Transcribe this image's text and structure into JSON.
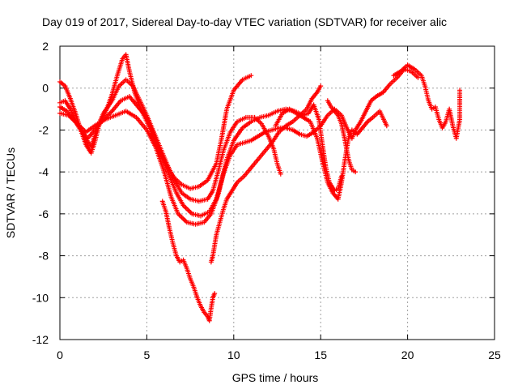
{
  "chart_data": {
    "type": "scatter",
    "title": "Day 019 of 2017, Sidereal Day-to-day VTEC variation (SDTVAR) for receiver alic",
    "xlabel": "GPS time / hours",
    "ylabel": "SDTVAR / TECUs",
    "xlim": [
      0,
      25
    ],
    "ylim": [
      -12,
      2
    ],
    "xticks": [
      0,
      5,
      10,
      15,
      20,
      25
    ],
    "yticks": [
      2,
      0,
      -2,
      -4,
      -6,
      -8,
      -10,
      -12
    ],
    "grid": true,
    "marker": "+",
    "color": "#ff0000",
    "series": [
      {
        "points": [
          [
            0,
            0.3
          ],
          [
            0.3,
            0.1
          ],
          [
            0.6,
            -0.5
          ],
          [
            0.9,
            -1.2
          ],
          [
            1.2,
            -2.0
          ],
          [
            1.5,
            -2.7
          ],
          [
            1.8,
            -3.1
          ],
          [
            2.0,
            -2.6
          ],
          [
            2.3,
            -1.6
          ],
          [
            2.7,
            -1.0
          ],
          [
            3.0,
            -0.3
          ],
          [
            3.3,
            0.6
          ],
          [
            3.6,
            1.4
          ],
          [
            3.8,
            1.6
          ],
          [
            4.0,
            0.8
          ],
          [
            4.3,
            -0.2
          ],
          [
            4.6,
            -0.9
          ],
          [
            5.0,
            -1.6
          ],
          [
            5.4,
            -2.4
          ],
          [
            5.8,
            -3.1
          ],
          [
            6.2,
            -3.8
          ],
          [
            6.6,
            -4.3
          ],
          [
            7.0,
            -4.6
          ],
          [
            7.5,
            -4.8
          ],
          [
            8.0,
            -4.7
          ],
          [
            8.5,
            -4.4
          ],
          [
            9.0,
            -3.6
          ],
          [
            9.3,
            -2.4
          ],
          [
            9.6,
            -1.0
          ],
          [
            10.0,
            -0.1
          ],
          [
            10.5,
            0.4
          ],
          [
            11.0,
            0.6
          ]
        ]
      },
      {
        "points": [
          [
            0,
            -0.7
          ],
          [
            0.3,
            -0.6
          ],
          [
            0.6,
            -1.0
          ],
          [
            1.0,
            -1.7
          ],
          [
            1.4,
            -2.3
          ],
          [
            1.8,
            -2.8
          ],
          [
            2.1,
            -2.0
          ],
          [
            2.5,
            -1.2
          ],
          [
            3.0,
            -0.6
          ],
          [
            3.4,
            0.1
          ],
          [
            3.8,
            0.4
          ],
          [
            4.2,
            0.1
          ],
          [
            4.6,
            -0.6
          ],
          [
            5.0,
            -1.3
          ],
          [
            5.4,
            -2.1
          ],
          [
            5.8,
            -2.9
          ],
          [
            6.2,
            -3.7
          ],
          [
            6.6,
            -4.4
          ],
          [
            7.0,
            -5.0
          ],
          [
            7.5,
            -5.3
          ],
          [
            8.0,
            -5.4
          ],
          [
            8.5,
            -5.3
          ],
          [
            8.8,
            -4.9
          ],
          [
            9.1,
            -4.0
          ],
          [
            9.4,
            -3.0
          ],
          [
            9.8,
            -2.1
          ],
          [
            10.2,
            -1.6
          ],
          [
            10.7,
            -1.4
          ],
          [
            11.2,
            -1.4
          ],
          [
            11.6,
            -1.7
          ],
          [
            12.0,
            -2.3
          ],
          [
            12.3,
            -2.9
          ],
          [
            12.5,
            -3.6
          ],
          [
            12.7,
            -4.1
          ]
        ]
      },
      {
        "points": [
          [
            0,
            -0.9
          ],
          [
            0.4,
            -1.1
          ],
          [
            0.8,
            -1.5
          ],
          [
            1.2,
            -2.0
          ],
          [
            1.6,
            -2.4
          ],
          [
            2.0,
            -2.0
          ],
          [
            2.5,
            -1.5
          ],
          [
            3.0,
            -1.1
          ],
          [
            3.5,
            -0.6
          ],
          [
            4.0,
            -0.4
          ],
          [
            4.5,
            -0.9
          ],
          [
            5.0,
            -1.4
          ],
          [
            5.4,
            -2.2
          ],
          [
            5.9,
            -3.3
          ],
          [
            6.3,
            -4.2
          ],
          [
            6.7,
            -5.0
          ],
          [
            7.1,
            -5.6
          ],
          [
            7.6,
            -6.0
          ],
          [
            8.1,
            -6.1
          ],
          [
            8.6,
            -5.9
          ],
          [
            9.0,
            -5.3
          ],
          [
            9.3,
            -4.4
          ],
          [
            9.6,
            -3.4
          ],
          [
            10.0,
            -2.5
          ],
          [
            10.5,
            -1.9
          ],
          [
            11.0,
            -1.6
          ],
          [
            11.5,
            -1.4
          ],
          [
            12.0,
            -1.3
          ],
          [
            12.5,
            -1.1
          ],
          [
            13.0,
            -1.0
          ],
          [
            13.5,
            -1.1
          ],
          [
            14.0,
            -1.3
          ],
          [
            14.3,
            -1.2
          ],
          [
            14.6,
            -0.8
          ],
          [
            14.9,
            -1.5
          ],
          [
            15.1,
            -2.7
          ],
          [
            15.3,
            -3.8
          ],
          [
            15.5,
            -4.5
          ],
          [
            15.8,
            -4.9
          ],
          [
            16.0,
            -4.8
          ],
          [
            16.2,
            -4.2
          ]
        ]
      },
      {
        "points": [
          [
            0,
            -1.2
          ],
          [
            0.5,
            -1.3
          ],
          [
            1.0,
            -1.7
          ],
          [
            1.5,
            -2.1
          ],
          [
            2.0,
            -1.8
          ],
          [
            2.6,
            -1.5
          ],
          [
            3.2,
            -1.3
          ],
          [
            3.8,
            -1.1
          ],
          [
            4.4,
            -1.4
          ],
          [
            5.0,
            -2.0
          ],
          [
            5.5,
            -2.8
          ],
          [
            6.0,
            -4.0
          ],
          [
            6.4,
            -5.2
          ],
          [
            6.8,
            -6.0
          ],
          [
            7.3,
            -6.4
          ],
          [
            7.8,
            -6.5
          ],
          [
            8.3,
            -6.4
          ],
          [
            8.7,
            -6.0
          ],
          [
            9.1,
            -5.1
          ],
          [
            9.4,
            -4.1
          ],
          [
            9.8,
            -3.2
          ],
          [
            10.2,
            -2.7
          ],
          [
            10.6,
            -2.6
          ],
          [
            11.0,
            -2.5
          ],
          [
            11.4,
            -2.3
          ],
          [
            11.8,
            -2.1
          ],
          [
            12.2,
            -2.0
          ],
          [
            12.6,
            -1.9
          ],
          [
            13.0,
            -1.9
          ],
          [
            13.4,
            -2.0
          ],
          [
            13.8,
            -2.2
          ],
          [
            14.2,
            -2.3
          ],
          [
            14.6,
            -2.1
          ],
          [
            15.0,
            -1.8
          ],
          [
            15.4,
            -1.3
          ],
          [
            15.8,
            -1.0
          ],
          [
            16.2,
            -1.3
          ],
          [
            16.5,
            -1.9
          ],
          [
            16.8,
            -2.4
          ],
          [
            17.0,
            -2.0
          ],
          [
            17.3,
            -1.6
          ],
          [
            17.6,
            -1.1
          ],
          [
            17.9,
            -0.6
          ],
          [
            18.2,
            -0.4
          ],
          [
            18.6,
            -0.2
          ],
          [
            19.0,
            0.2
          ],
          [
            19.4,
            0.5
          ],
          [
            19.8,
            0.9
          ],
          [
            20.2,
            0.8
          ],
          [
            20.6,
            0.5
          ]
        ]
      },
      {
        "points": [
          [
            5.9,
            -5.4
          ],
          [
            6.1,
            -5.9
          ],
          [
            6.3,
            -6.7
          ],
          [
            6.5,
            -7.4
          ],
          [
            6.7,
            -8.0
          ],
          [
            6.9,
            -8.3
          ],
          [
            7.1,
            -8.2
          ],
          [
            7.3,
            -8.6
          ],
          [
            7.5,
            -9.1
          ],
          [
            7.7,
            -9.5
          ],
          [
            7.9,
            -10.0
          ],
          [
            8.1,
            -10.4
          ],
          [
            8.3,
            -10.7
          ],
          [
            8.5,
            -10.9
          ],
          [
            8.6,
            -11.1
          ],
          [
            8.7,
            -10.5
          ],
          [
            8.8,
            -10.0
          ],
          [
            8.9,
            -9.8
          ]
        ]
      },
      {
        "points": [
          [
            8.7,
            -8.3
          ],
          [
            8.8,
            -8.0
          ],
          [
            8.9,
            -7.5
          ],
          [
            9.0,
            -7.0
          ],
          [
            9.2,
            -6.4
          ],
          [
            9.4,
            -5.8
          ],
          [
            9.6,
            -5.3
          ],
          [
            9.9,
            -4.9
          ],
          [
            10.2,
            -4.5
          ],
          [
            10.6,
            -4.2
          ],
          [
            11.0,
            -3.8
          ],
          [
            11.4,
            -3.4
          ],
          [
            11.8,
            -3.0
          ],
          [
            12.2,
            -2.6
          ],
          [
            12.6,
            -2.1
          ],
          [
            13.0,
            -1.8
          ],
          [
            13.4,
            -1.6
          ],
          [
            13.8,
            -1.3
          ],
          [
            14.2,
            -1.0
          ],
          [
            14.5,
            -0.5
          ],
          [
            14.8,
            -0.2
          ],
          [
            15.0,
            0.1
          ]
        ]
      },
      {
        "points": [
          [
            12.4,
            -1.8
          ],
          [
            12.8,
            -1.2
          ],
          [
            13.2,
            -1.0
          ],
          [
            13.6,
            -1.2
          ],
          [
            14.0,
            -1.4
          ],
          [
            14.4,
            -1.6
          ],
          [
            14.8,
            -2.4
          ],
          [
            15.1,
            -3.5
          ],
          [
            15.4,
            -4.5
          ],
          [
            15.7,
            -5.0
          ],
          [
            16.0,
            -5.3
          ],
          [
            16.2,
            -4.5
          ],
          [
            16.4,
            -3.4
          ],
          [
            16.6,
            -2.4
          ],
          [
            16.8,
            -2.0
          ],
          [
            17.1,
            -2.2
          ],
          [
            17.4,
            -1.9
          ],
          [
            17.7,
            -1.6
          ],
          [
            18.0,
            -1.4
          ],
          [
            18.4,
            -1.1
          ],
          [
            18.8,
            -1.8
          ]
        ]
      },
      {
        "points": [
          [
            15.4,
            -0.6
          ],
          [
            15.6,
            -0.9
          ],
          [
            15.8,
            -1.1
          ],
          [
            16.0,
            -1.3
          ],
          [
            16.2,
            -1.7
          ],
          [
            16.4,
            -2.5
          ],
          [
            16.6,
            -3.4
          ],
          [
            16.8,
            -3.9
          ],
          [
            17.0,
            -4.0
          ]
        ]
      },
      {
        "points": [
          [
            19.2,
            0.6
          ],
          [
            19.6,
            0.8
          ],
          [
            20.0,
            1.1
          ],
          [
            20.4,
            0.9
          ],
          [
            20.8,
            0.6
          ],
          [
            21.0,
            0.1
          ],
          [
            21.2,
            -0.6
          ],
          [
            21.4,
            -1.0
          ],
          [
            21.6,
            -0.9
          ],
          [
            21.8,
            -1.5
          ],
          [
            22.0,
            -1.9
          ],
          [
            22.2,
            -1.6
          ],
          [
            22.4,
            -1.0
          ],
          [
            22.6,
            -1.8
          ],
          [
            22.8,
            -2.4
          ],
          [
            23.0,
            -1.5
          ],
          [
            23.0,
            -0.1
          ]
        ]
      }
    ]
  }
}
